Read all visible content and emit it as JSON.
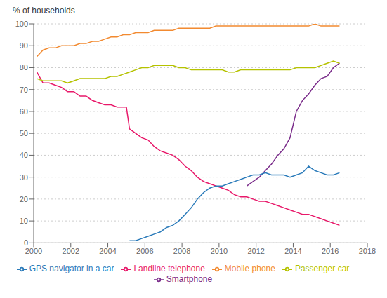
{
  "chart_data": {
    "type": "line",
    "ylabel": "% of households",
    "xlim": [
      2000,
      2018
    ],
    "ylim": [
      0,
      100
    ],
    "xticks": [
      2000,
      2002,
      2004,
      2006,
      2008,
      2010,
      2012,
      2014,
      2016,
      2018
    ],
    "yticks": [
      0,
      10,
      20,
      30,
      40,
      50,
      60,
      70,
      80,
      90,
      100
    ],
    "grid": true,
    "legend": "bottom",
    "series": [
      {
        "name": "Landline telephone",
        "color": "#e8196a",
        "x": [
          2000.17,
          2000.5,
          2000.83,
          2001.17,
          2001.5,
          2001.83,
          2002.17,
          2002.5,
          2002.83,
          2003.17,
          2003.5,
          2003.83,
          2004.17,
          2004.5,
          2004.83,
          2005.0,
          2005.17,
          2005.5,
          2005.83,
          2006.17,
          2006.5,
          2006.83,
          2007.17,
          2007.5,
          2007.83,
          2008.17,
          2008.5,
          2008.83,
          2009.17,
          2009.5,
          2009.83,
          2010.17,
          2010.5,
          2010.83,
          2011.17,
          2011.5,
          2011.83,
          2012.17,
          2012.5,
          2012.83,
          2013.17,
          2013.5,
          2013.83,
          2014.17,
          2014.5,
          2014.83,
          2015.17,
          2015.5,
          2015.83,
          2016.17,
          2016.5
        ],
        "values": [
          78,
          73,
          73,
          72,
          71,
          69,
          69,
          67,
          67,
          65,
          64,
          63,
          63,
          62,
          62,
          62,
          52,
          50,
          48,
          47,
          44,
          42,
          41,
          40,
          38,
          35,
          33,
          30,
          28,
          27,
          26,
          25,
          24,
          22,
          21,
          21,
          20,
          19,
          19,
          18,
          17,
          16,
          15,
          14,
          13,
          13,
          12,
          11,
          10,
          9,
          8
        ]
      },
      {
        "name": "Mobile phone",
        "color": "#f28a30",
        "x": [
          2000.17,
          2000.5,
          2000.83,
          2001.17,
          2001.5,
          2001.83,
          2002.17,
          2002.5,
          2002.83,
          2003.17,
          2003.5,
          2003.83,
          2004.17,
          2004.5,
          2004.83,
          2005.17,
          2005.5,
          2005.83,
          2006.17,
          2006.5,
          2006.83,
          2007.17,
          2007.5,
          2007.83,
          2008.17,
          2008.5,
          2008.83,
          2009.17,
          2009.5,
          2009.83,
          2010.17,
          2010.5,
          2010.83,
          2011.17,
          2011.5,
          2011.83,
          2012.17,
          2012.5,
          2012.83,
          2013.17,
          2013.5,
          2013.83,
          2014.17,
          2014.5,
          2014.83,
          2015.17,
          2015.5,
          2015.83,
          2016.17,
          2016.5
        ],
        "values": [
          85,
          88,
          89,
          89,
          90,
          90,
          90,
          91,
          91,
          92,
          92,
          93,
          94,
          94,
          95,
          95,
          96,
          96,
          96,
          97,
          97,
          97,
          97,
          98,
          98,
          98,
          98,
          98,
          98,
          99,
          99,
          99,
          99,
          99,
          99,
          99,
          99,
          99,
          99,
          99,
          99,
          99,
          99,
          99,
          99,
          100,
          99,
          99,
          99,
          99
        ]
      },
      {
        "name": "Smartphone",
        "color": "#7b2d8b",
        "x": [
          2011.5,
          2011.83,
          2012.17,
          2012.5,
          2012.83,
          2013.17,
          2013.5,
          2013.83,
          2014.17,
          2014.5,
          2014.83,
          2015.17,
          2015.5,
          2015.83,
          2016.17,
          2016.5
        ],
        "values": [
          26,
          28,
          30,
          33,
          36,
          40,
          43,
          48,
          60,
          65,
          68,
          72,
          75,
          76,
          80,
          82
        ]
      },
      {
        "name": "Passenger car",
        "color": "#b5c200",
        "x": [
          2000.17,
          2000.5,
          2000.83,
          2001.17,
          2001.5,
          2001.83,
          2002.17,
          2002.5,
          2002.83,
          2003.17,
          2003.5,
          2003.83,
          2004.17,
          2004.5,
          2004.83,
          2005.17,
          2005.5,
          2005.83,
          2006.17,
          2006.5,
          2006.83,
          2007.17,
          2007.5,
          2007.83,
          2008.17,
          2008.5,
          2008.83,
          2009.17,
          2009.5,
          2009.83,
          2010.17,
          2010.5,
          2010.83,
          2011.17,
          2011.5,
          2011.83,
          2012.17,
          2012.5,
          2012.83,
          2013.17,
          2013.5,
          2013.83,
          2014.17,
          2014.5,
          2014.83,
          2015.17,
          2015.5,
          2015.83,
          2016.17,
          2016.5
        ],
        "values": [
          75,
          74,
          74,
          74,
          74,
          73,
          74,
          75,
          75,
          75,
          75,
          75,
          76,
          76,
          77,
          78,
          79,
          80,
          80,
          81,
          81,
          81,
          81,
          80,
          80,
          79,
          79,
          79,
          79,
          79,
          79,
          78,
          78,
          79,
          79,
          79,
          79,
          79,
          79,
          79,
          79,
          79,
          80,
          80,
          80,
          80,
          81,
          82,
          83,
          82
        ]
      },
      {
        "name": "GPS navigator in a car",
        "color": "#2b7bba",
        "x": [
          2005.17,
          2005.5,
          2005.83,
          2006.17,
          2006.5,
          2006.83,
          2007.17,
          2007.5,
          2007.83,
          2008.17,
          2008.5,
          2008.83,
          2009.17,
          2009.5,
          2009.83,
          2010.17,
          2010.5,
          2010.83,
          2011.17,
          2011.5,
          2011.83,
          2012.17,
          2012.5,
          2012.83,
          2013.17,
          2013.5,
          2013.83,
          2014.17,
          2014.5,
          2014.83,
          2015.17,
          2015.5,
          2015.83,
          2016.17,
          2016.5
        ],
        "values": [
          1,
          1,
          2,
          3,
          4,
          5,
          7,
          8,
          10,
          13,
          16,
          20,
          23,
          25,
          26,
          26,
          27,
          28,
          29,
          30,
          31,
          31,
          32,
          31,
          31,
          31,
          30,
          31,
          32,
          35,
          33,
          32,
          31,
          31,
          32
        ]
      }
    ]
  }
}
